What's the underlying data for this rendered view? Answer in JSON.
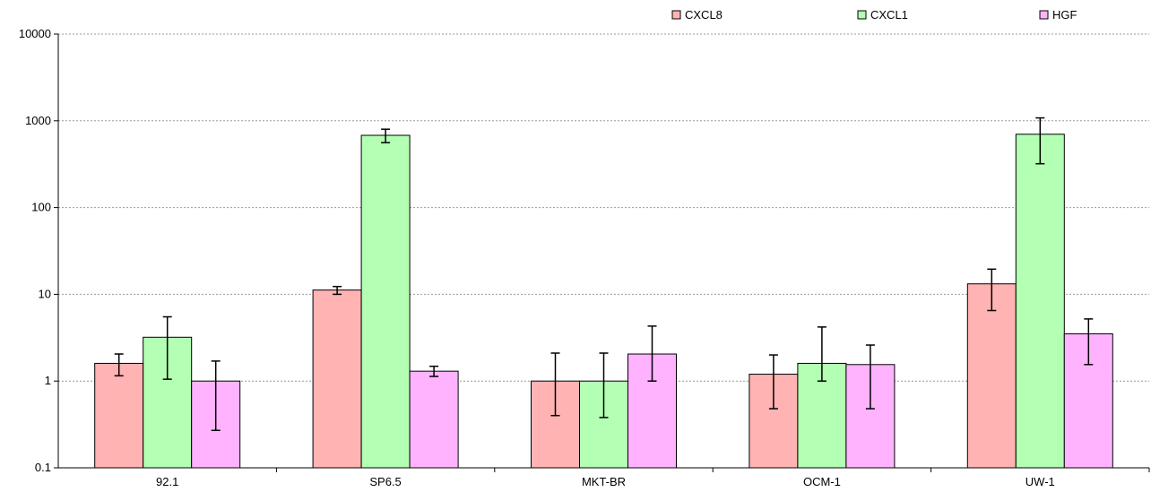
{
  "chart_data": {
    "type": "bar",
    "title": "",
    "xlabel": "",
    "ylabel": "",
    "yscale": "log",
    "ylim": [
      0.1,
      10000
    ],
    "yticks": [
      "0.1",
      "1",
      "10",
      "100",
      "1000",
      "10000"
    ],
    "grid": true,
    "legend_position": "top-right",
    "categories": [
      "92.1",
      "SP6.5",
      "MKT-BR",
      "OCM-1",
      "UW-1"
    ],
    "series": [
      {
        "name": "CXCL8",
        "color": "#ffb3b3",
        "values": [
          1.6,
          11.2,
          1.0,
          1.2,
          13.2
        ],
        "err_low": [
          1.15,
          10.0,
          0.4,
          0.48,
          6.5
        ],
        "err_high": [
          2.05,
          12.3,
          2.1,
          2.0,
          19.5
        ]
      },
      {
        "name": "CXCL1",
        "color": "#b3ffb3",
        "values": [
          3.2,
          680,
          1.0,
          1.6,
          700
        ],
        "err_low": [
          1.05,
          560,
          0.38,
          1.0,
          320
        ],
        "err_high": [
          5.5,
          800,
          2.1,
          4.2,
          1080
        ]
      },
      {
        "name": "HGF",
        "color": "#ffb3ff",
        "values": [
          1.0,
          1.3,
          2.05,
          1.55,
          3.5
        ],
        "err_low": [
          0.27,
          1.13,
          1.0,
          0.48,
          1.55
        ],
        "err_high": [
          1.7,
          1.48,
          4.3,
          2.6,
          5.2
        ]
      }
    ]
  }
}
